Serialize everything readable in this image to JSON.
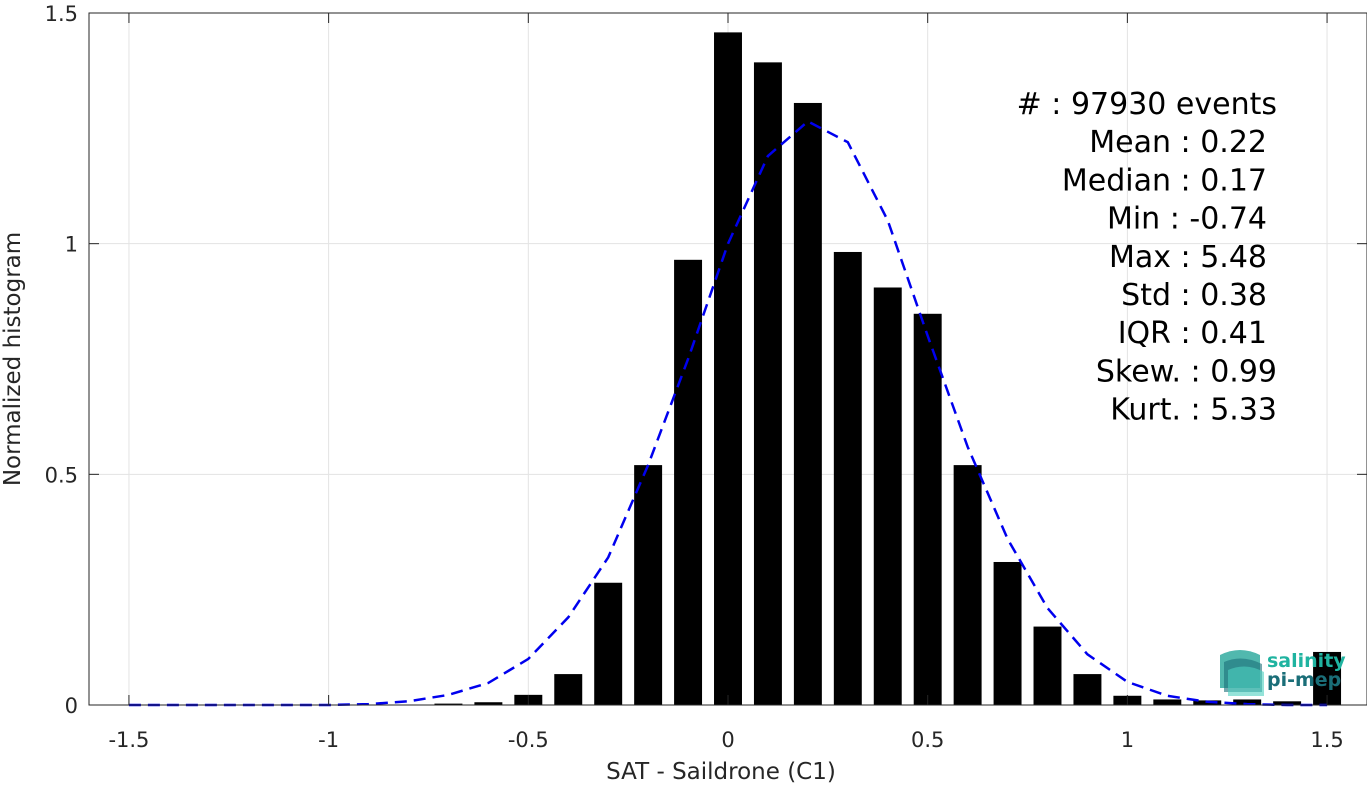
{
  "chart_data": {
    "type": "bar",
    "xlabel": "SAT - Saildrone (C1)",
    "ylabel": "Normalized histogram",
    "xlim": [
      -1.6,
      1.6
    ],
    "ylim": [
      0,
      1.5
    ],
    "grid": true,
    "x_ticks": [
      -1.5,
      -1,
      -0.5,
      0,
      0.5,
      1,
      1.5
    ],
    "x_tick_labels": [
      "-1.5",
      "-1",
      "-0.5",
      "0",
      "0.5",
      "1",
      "1.5"
    ],
    "y_ticks": [
      0,
      0.5,
      1,
      1.5
    ],
    "y_tick_labels": [
      "0",
      "0.5",
      "1",
      "1.5"
    ],
    "bar_width": 0.07,
    "bar_color": "#000000",
    "histogram": {
      "x": [
        -0.7,
        -0.6,
        -0.5,
        -0.4,
        -0.3,
        -0.2,
        -0.1,
        0.0,
        0.1,
        0.2,
        0.3,
        0.4,
        0.5,
        0.6,
        0.7,
        0.8,
        0.9,
        1.0,
        1.1,
        1.2,
        1.3,
        1.4,
        1.5
      ],
      "values": [
        0.003,
        0.006,
        0.022,
        0.067,
        0.265,
        0.52,
        0.965,
        1.458,
        1.393,
        1.305,
        0.982,
        0.905,
        0.848,
        0.52,
        0.31,
        0.17,
        0.067,
        0.02,
        0.012,
        0.01,
        0.012,
        0.008,
        0.115
      ]
    },
    "fit_curve": {
      "style": "dashed",
      "color": "#0000ee",
      "x": [
        -1.5,
        -1.4,
        -1.3,
        -1.2,
        -1.1,
        -1.0,
        -0.9,
        -0.8,
        -0.7,
        -0.6,
        -0.5,
        -0.4,
        -0.3,
        -0.2,
        -0.1,
        0.0,
        0.1,
        0.2,
        0.3,
        0.4,
        0.5,
        0.6,
        0.7,
        0.8,
        0.9,
        1.0,
        1.1,
        1.2,
        1.3,
        1.4,
        1.5
      ],
      "y": [
        0.0,
        0.0,
        0.0,
        0.0,
        0.0,
        0.0,
        0.002,
        0.008,
        0.022,
        0.048,
        0.1,
        0.19,
        0.32,
        0.52,
        0.75,
        1.0,
        1.19,
        1.265,
        1.22,
        1.05,
        0.8,
        0.56,
        0.36,
        0.21,
        0.11,
        0.05,
        0.02,
        0.007,
        0.002,
        0.0,
        0.0
      ]
    },
    "stats": [
      "#  : 97930 events",
      "Mean : 0.22",
      "Median : 0.17",
      "Min : -0.74",
      "Max : 5.48",
      "Std : 0.38",
      "IQR : 0.41",
      "Skew. : 0.99",
      "Kurt. : 5.33"
    ]
  },
  "logo": {
    "line1": "salinity",
    "line2": "pi-mep",
    "color1": "#1fb3a0",
    "color2": "#1a6e78"
  }
}
